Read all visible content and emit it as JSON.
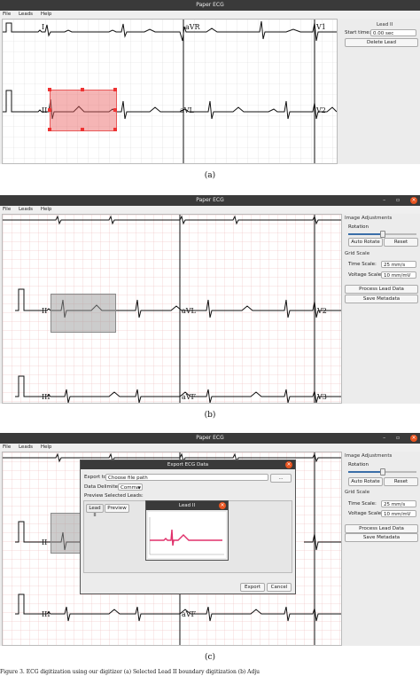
{
  "panels": [
    {
      "caption": "(a)",
      "window_title": "Paper ECG",
      "menu": [
        "File",
        "Leads",
        "Help"
      ],
      "leads": [
        "I",
        "aVR",
        "V1",
        "II",
        "aVL",
        "V2"
      ],
      "sidebar": {
        "header": "Lead II",
        "start_time_label": "Start time:",
        "start_time_value": "0.00 sec",
        "delete_button": "Delete Lead"
      }
    },
    {
      "caption": "(b)",
      "window_title": "Paper ECG",
      "menu": [
        "File",
        "Leads",
        "Help"
      ],
      "leads": [
        "II",
        "aVL",
        "V2",
        "III",
        "aVF",
        "V3"
      ],
      "sidebar": {
        "image_adjustments": "Image Adjustments",
        "rotation_label": "Rotation",
        "auto_rotate": "Auto Rotate",
        "reset": "Reset",
        "grid_scale": "Grid Scale",
        "time_scale_label": "Time Scale:",
        "time_scale_value": "25 mm/s",
        "voltage_scale_label": "Voltage Scale:",
        "voltage_scale_value": "10 mm/mV",
        "process_button": "Process Lead Data",
        "save_metadata": "Save Metadata"
      }
    },
    {
      "caption": "(c)",
      "window_title": "Paper ECG",
      "menu": [
        "File",
        "Leads",
        "Help"
      ],
      "leads": [
        "II",
        "III",
        "aVF"
      ],
      "sidebar": {
        "image_adjustments": "Image Adjustments",
        "rotation_label": "Rotation",
        "auto_rotate": "Auto Rotate",
        "reset": "Reset",
        "grid_scale": "Grid Scale",
        "time_scale_label": "Time Scale:",
        "time_scale_value": "25 mm/s",
        "voltage_scale_label": "Voltage Scale:",
        "voltage_scale_value": "10 mm/mV",
        "process_button": "Process Lead Data",
        "save_metadata": "Save Metadata"
      },
      "export_dialog": {
        "title": "Export ECG Data",
        "export_to_label": "Export to:",
        "export_to_value": "Choose file path",
        "browse_button": "...",
        "delimiter_label": "Data Delimiter:",
        "delimiter_value": "Comma",
        "preview_label": "Preview Selected Leads:",
        "lead_tab": "Lead II",
        "preview_button": "Preview",
        "export_button": "Export",
        "cancel_button": "Cancel"
      },
      "preview_window": {
        "title": "Lead II"
      }
    }
  ],
  "footer_text": "Figure 3. ECG digitization using our digitizer (a) Selected Lead II boundary digitization (b) Adju",
  "colors": {
    "selection_red": "#e85a5a",
    "selection_gray": "#9a9a9a",
    "grid_red": "#e9b3b3",
    "trace_pink": "#e0306a",
    "accent": "#e95420"
  }
}
